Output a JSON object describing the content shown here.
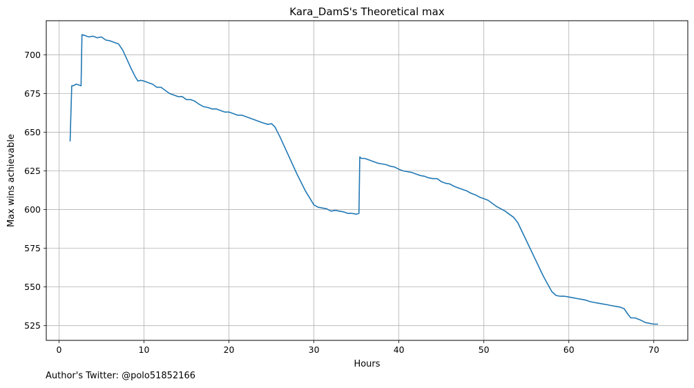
{
  "footer_note": "Author's Twitter: @polo51852166",
  "chart_data": {
    "type": "line",
    "title": "Kara_DamS's Theoretical max",
    "xlabel": "Hours",
    "ylabel": "Max wins achievable",
    "xlim": [
      -1.5,
      74.0
    ],
    "ylim": [
      515.5,
      722.0
    ],
    "xticks": [
      0,
      10,
      20,
      30,
      40,
      50,
      60,
      70
    ],
    "yticks": [
      525,
      550,
      575,
      600,
      625,
      650,
      675,
      700
    ],
    "grid": true,
    "line_color": "#1f77b4",
    "series": [
      {
        "name": "",
        "points": [
          [
            1.3,
            644
          ],
          [
            1.5,
            680
          ],
          [
            1.7,
            680
          ],
          [
            2.0,
            681
          ],
          [
            2.3,
            680.5
          ],
          [
            2.6,
            680
          ],
          [
            2.7,
            713
          ],
          [
            3.0,
            712.5
          ],
          [
            3.5,
            711.5
          ],
          [
            4.0,
            712
          ],
          [
            4.5,
            711
          ],
          [
            5.0,
            711.5
          ],
          [
            5.5,
            709.5
          ],
          [
            6.0,
            709
          ],
          [
            6.5,
            708
          ],
          [
            7.0,
            707
          ],
          [
            7.5,
            703
          ],
          [
            8.0,
            697
          ],
          [
            8.5,
            691
          ],
          [
            9.0,
            685.5
          ],
          [
            9.3,
            683
          ],
          [
            9.6,
            683.5
          ],
          [
            10.0,
            683
          ],
          [
            10.5,
            682
          ],
          [
            11.0,
            681
          ],
          [
            11.5,
            679
          ],
          [
            12.0,
            679
          ],
          [
            12.5,
            677
          ],
          [
            13.0,
            675
          ],
          [
            13.5,
            674
          ],
          [
            14.0,
            673
          ],
          [
            14.5,
            673
          ],
          [
            15.0,
            671
          ],
          [
            15.5,
            671
          ],
          [
            16.0,
            670
          ],
          [
            16.5,
            668
          ],
          [
            17.0,
            666.5
          ],
          [
            17.5,
            666
          ],
          [
            18.0,
            665
          ],
          [
            18.5,
            665
          ],
          [
            19.0,
            664
          ],
          [
            19.5,
            663
          ],
          [
            20.0,
            663
          ],
          [
            20.5,
            662
          ],
          [
            21.0,
            661
          ],
          [
            21.5,
            661
          ],
          [
            22.0,
            660
          ],
          [
            23.0,
            658
          ],
          [
            24.0,
            656
          ],
          [
            24.6,
            655
          ],
          [
            25.0,
            655.5
          ],
          [
            25.4,
            653.5
          ],
          [
            26.0,
            647
          ],
          [
            27.0,
            635
          ],
          [
            28.0,
            623
          ],
          [
            29.0,
            612
          ],
          [
            30.0,
            603
          ],
          [
            30.5,
            601.5
          ],
          [
            31.0,
            601
          ],
          [
            31.5,
            600.5
          ],
          [
            32.0,
            599
          ],
          [
            32.5,
            599.5
          ],
          [
            33.0,
            599
          ],
          [
            33.5,
            598.5
          ],
          [
            34.0,
            597.5
          ],
          [
            34.5,
            597.5
          ],
          [
            35.0,
            597
          ],
          [
            35.3,
            597.5
          ],
          [
            35.4,
            634
          ],
          [
            35.6,
            633
          ],
          [
            36.0,
            633
          ],
          [
            36.5,
            632
          ],
          [
            37.0,
            631
          ],
          [
            37.5,
            630
          ],
          [
            38.0,
            629.5
          ],
          [
            38.5,
            629
          ],
          [
            39.0,
            628
          ],
          [
            39.5,
            627.5
          ],
          [
            40.0,
            626
          ],
          [
            40.5,
            625
          ],
          [
            41.0,
            624.5
          ],
          [
            41.5,
            624
          ],
          [
            42.0,
            623
          ],
          [
            42.5,
            622
          ],
          [
            43.0,
            621.5
          ],
          [
            43.5,
            620.5
          ],
          [
            44.0,
            620
          ],
          [
            44.5,
            620
          ],
          [
            45.0,
            618
          ],
          [
            45.5,
            617
          ],
          [
            46.0,
            616.5
          ],
          [
            46.5,
            615
          ],
          [
            47.0,
            614
          ],
          [
            47.5,
            613
          ],
          [
            48.0,
            612
          ],
          [
            48.5,
            610.5
          ],
          [
            49.0,
            609.5
          ],
          [
            49.5,
            608
          ],
          [
            50.0,
            607
          ],
          [
            50.5,
            606
          ],
          [
            51.0,
            604
          ],
          [
            51.5,
            602
          ],
          [
            52.0,
            600.5
          ],
          [
            52.5,
            599
          ],
          [
            53.0,
            597
          ],
          [
            53.5,
            595
          ],
          [
            54.0,
            591.5
          ],
          [
            55.0,
            580
          ],
          [
            56.0,
            568.5
          ],
          [
            57.0,
            557
          ],
          [
            58.0,
            547
          ],
          [
            58.5,
            544.5
          ],
          [
            59.0,
            544
          ],
          [
            59.5,
            544
          ],
          [
            60.0,
            543.5
          ],
          [
            60.5,
            543
          ],
          [
            61.0,
            542.5
          ],
          [
            61.5,
            542
          ],
          [
            62.0,
            541.5
          ],
          [
            62.5,
            540.5
          ],
          [
            63.0,
            540
          ],
          [
            63.5,
            539.5
          ],
          [
            64.0,
            539
          ],
          [
            64.5,
            538.5
          ],
          [
            65.0,
            538
          ],
          [
            65.5,
            537.5
          ],
          [
            66.0,
            537
          ],
          [
            66.5,
            536
          ],
          [
            67.0,
            532
          ],
          [
            67.3,
            530
          ],
          [
            67.8,
            530
          ],
          [
            68.5,
            528.5
          ],
          [
            69.0,
            527
          ],
          [
            69.5,
            526.5
          ],
          [
            70.0,
            526
          ],
          [
            70.5,
            526
          ]
        ]
      }
    ]
  }
}
